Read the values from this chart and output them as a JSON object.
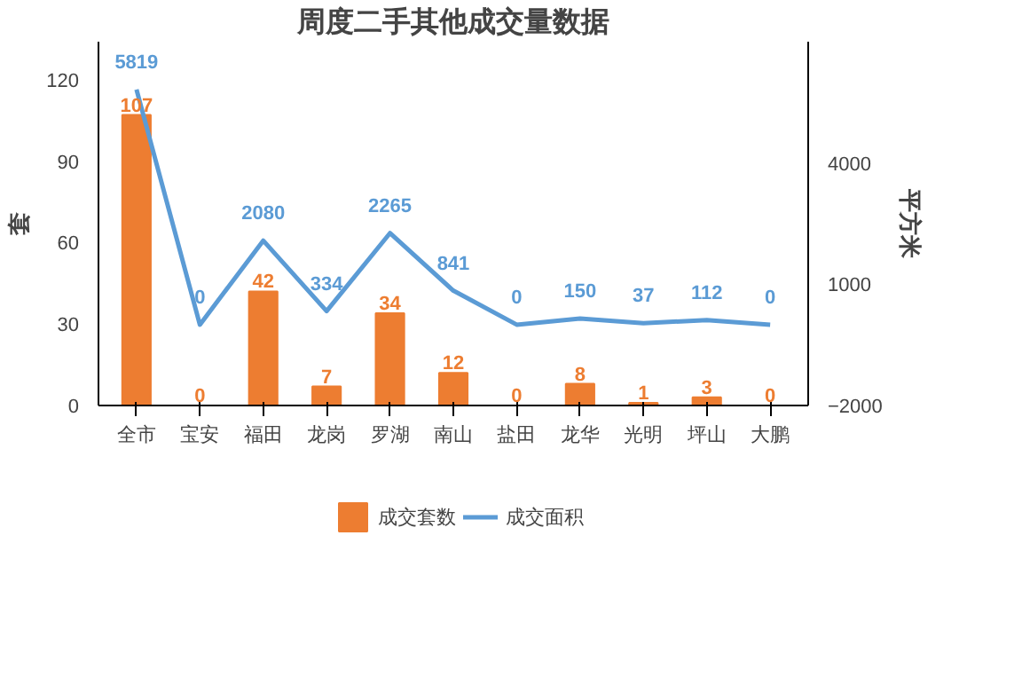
{
  "chart_data": {
    "type": "bar",
    "title": "周度二手其他成交量数据",
    "ylabel": "套",
    "y2label": "平方米",
    "categories": [
      "全市",
      "宝安",
      "福田",
      "龙岗",
      "罗湖",
      "南山",
      "盐田",
      "龙华",
      "光明",
      "坪山",
      "大鹏"
    ],
    "series": [
      {
        "name": "成交套数",
        "type": "bar",
        "color": "#ed7d31",
        "values": [
          107,
          0,
          42,
          7,
          34,
          12,
          0,
          8,
          1,
          3,
          0
        ]
      },
      {
        "name": "成交面积",
        "type": "line",
        "axis": "y2",
        "color": "#5b9bd5",
        "values": [
          5819,
          0,
          2080,
          334,
          2265,
          841,
          0,
          150,
          37,
          112,
          0
        ]
      }
    ],
    "ylim": [
      0,
      134
    ],
    "yticks": [
      0,
      30,
      60,
      90,
      120
    ],
    "y2lim": [
      -2000,
      7000
    ],
    "y2ticks": [
      -2000,
      1000,
      4000
    ],
    "data_labels": true,
    "legend": "bottom",
    "grid": false
  }
}
